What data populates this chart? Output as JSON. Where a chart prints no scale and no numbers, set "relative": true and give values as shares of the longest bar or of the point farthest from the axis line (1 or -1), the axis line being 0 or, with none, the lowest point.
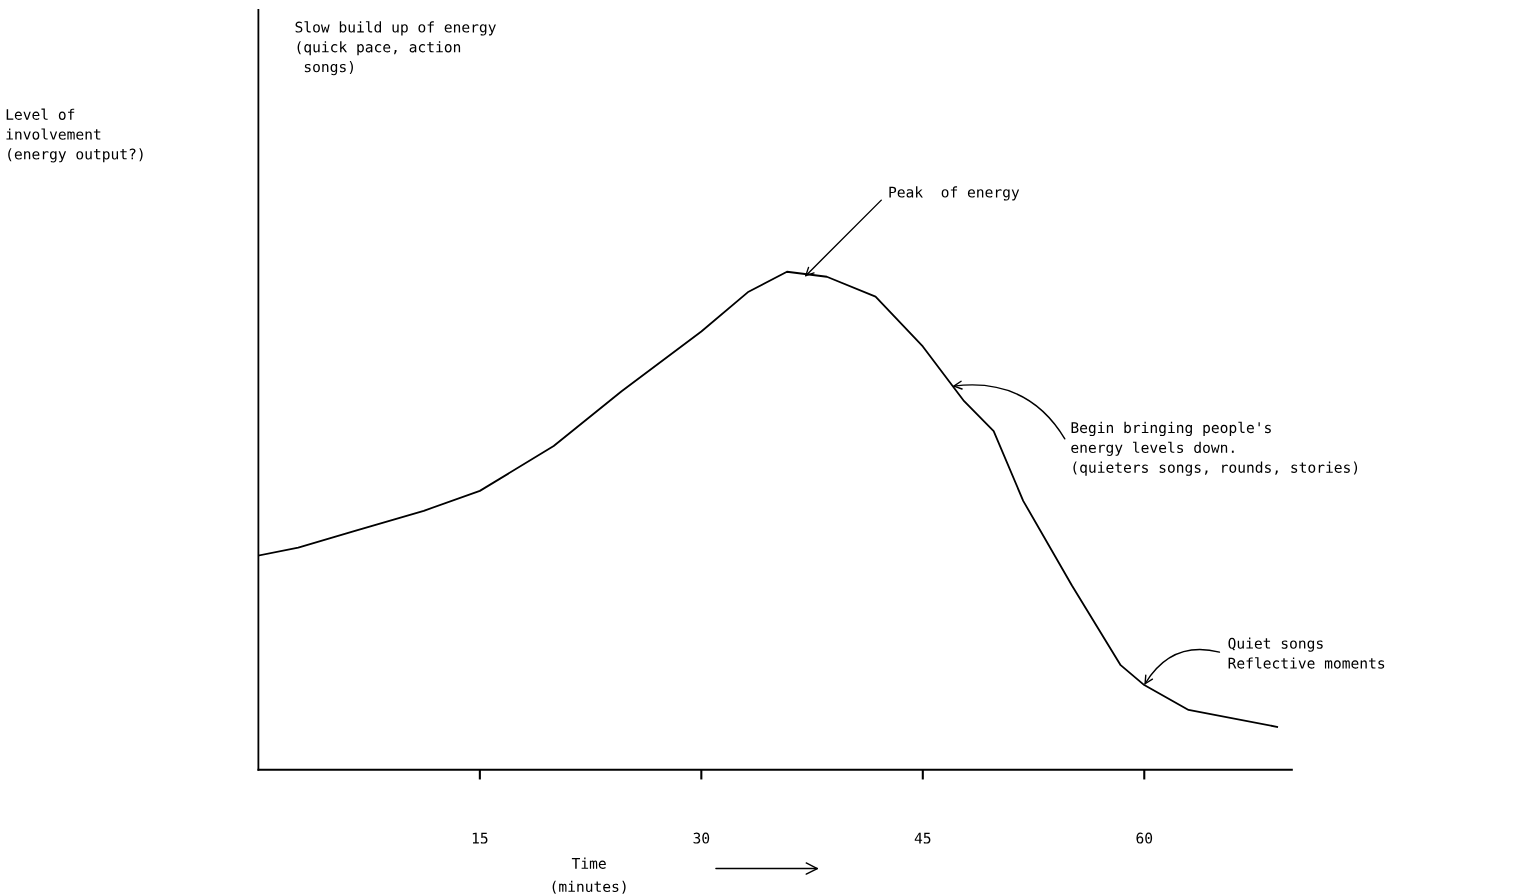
{
  "chart_data": {
    "type": "line",
    "relative": true,
    "xlabel": "Time\n(minutes)",
    "x": [
      0,
      2.7,
      6.6,
      11.2,
      15,
      20,
      24.6,
      30,
      33.2,
      35.8,
      38.5,
      41.8,
      45,
      47.8,
      49.8,
      51.8,
      55.1,
      58.4,
      60,
      63,
      69
    ],
    "series": [
      {
        "color": "#000000",
        "values": [
          0.43,
          0.446,
          0.48,
          0.52,
          0.56,
          0.65,
          0.76,
          0.88,
          0.96,
          1,
          0.99,
          0.95,
          0.85,
          0.74,
          0.68,
          0.54,
          0.37,
          0.21,
          0.17,
          0.12,
          0.086
        ]
      }
    ],
    "xlim": [
      0,
      70
    ],
    "xticks": [
      15,
      30,
      45,
      60
    ],
    "grid": false,
    "legend": false,
    "marker": "none",
    "line_style": "solid",
    "annotations": [
      "Level of\ninvolvement\n(energy output?)",
      "Slow build up of energy\n(quick pace, action\n songs)",
      {
        "text": "Peak  of energy",
        "x": 37,
        "y": 0.99
      },
      {
        "text": "Begin bringing people's\nenergy levels down.\n(quieters songs, rounds, stories)",
        "x": 47,
        "y": 0.77
      },
      {
        "text": "Quiet songs\nReflective moments",
        "x": 60,
        "y": 0.17
      }
    ]
  }
}
